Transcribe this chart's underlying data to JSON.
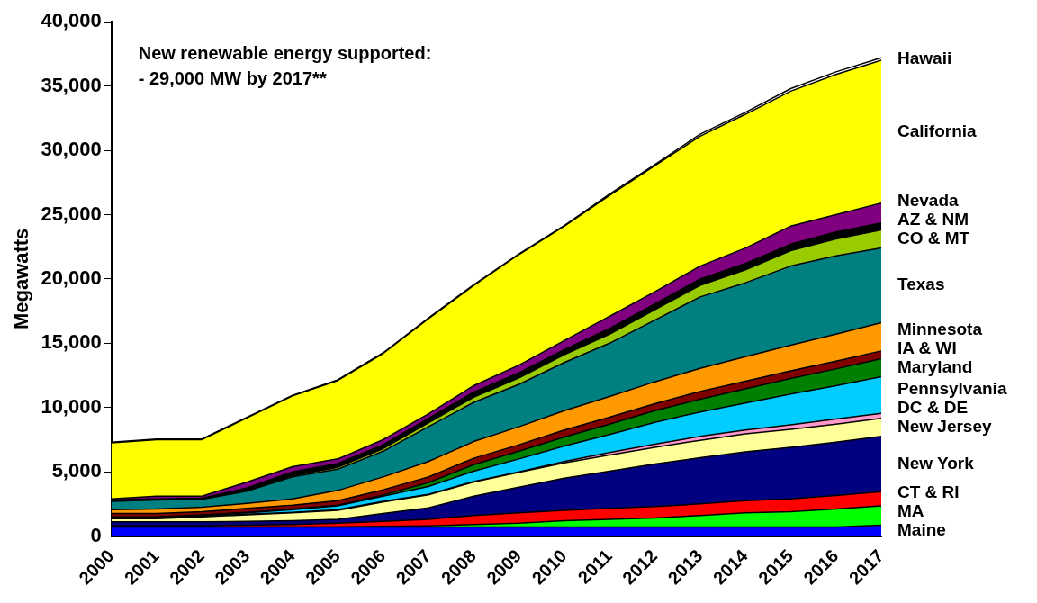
{
  "chart_data": {
    "type": "area",
    "stacked": true,
    "ylabel": "Megawatts",
    "categories": [
      "2000",
      "2001",
      "2002",
      "2003",
      "2004",
      "2005",
      "2006",
      "2007",
      "2008",
      "2009",
      "2010",
      "2011",
      "2012",
      "2013",
      "2014",
      "2015",
      "2016",
      "2017"
    ],
    "ylim": [
      0,
      40000
    ],
    "yticks": [
      {
        "value": 0,
        "label": "0"
      },
      {
        "value": 5000,
        "label": "5,000"
      },
      {
        "value": 10000,
        "label": "10,000"
      },
      {
        "value": 15000,
        "label": "15,000"
      },
      {
        "value": 20000,
        "label": "20,000"
      },
      {
        "value": 25000,
        "label": "25,000"
      },
      {
        "value": 30000,
        "label": "30,000"
      },
      {
        "value": 35000,
        "label": "35,000"
      },
      {
        "value": 40000,
        "label": "40,000"
      }
    ],
    "grid": false,
    "legend": false,
    "annotations": [
      "New renewable energy supported:\n- 29,000 MW by 2017**"
    ],
    "series": [
      {
        "name": "Maine",
        "color": "#0000ff",
        "values": [
          700,
          700,
          700,
          700,
          700,
          700,
          700,
          700,
          700,
          700,
          700,
          700,
          700,
          700,
          700,
          700,
          700,
          850
        ]
      },
      {
        "name": "MA",
        "color": "#00ff00",
        "values": [
          0,
          0,
          0,
          0,
          0,
          0,
          50,
          100,
          200,
          300,
          500,
          600,
          700,
          900,
          1100,
          1200,
          1400,
          1500
        ]
      },
      {
        "name": "CT & RI",
        "color": "#ff0000",
        "values": [
          100,
          100,
          100,
          150,
          200,
          300,
          400,
          500,
          700,
          800,
          800,
          850,
          900,
          900,
          950,
          1000,
          1050,
          1100
        ]
      },
      {
        "name": "New York",
        "color": "#000080",
        "values": [
          300,
          300,
          300,
          300,
          300,
          300,
          600,
          900,
          1500,
          2000,
          2500,
          2900,
          3300,
          3600,
          3800,
          4000,
          4150,
          4300
        ]
      },
      {
        "name": "New Jersey",
        "color": "#ffff99",
        "values": [
          250,
          250,
          400,
          500,
          600,
          700,
          900,
          1000,
          1100,
          1150,
          1200,
          1250,
          1300,
          1350,
          1400,
          1400,
          1400,
          1400
        ]
      },
      {
        "name": "DC & DE",
        "color": "#ff99cc",
        "values": [
          50,
          50,
          50,
          50,
          50,
          50,
          50,
          50,
          50,
          50,
          100,
          200,
          250,
          300,
          300,
          350,
          400,
          400
        ]
      },
      {
        "name": "Pennsylvania",
        "color": "#00ccff",
        "values": [
          50,
          50,
          50,
          100,
          200,
          300,
          400,
          600,
          800,
          1000,
          1200,
          1400,
          1700,
          1900,
          2100,
          2400,
          2600,
          2850
        ]
      },
      {
        "name": "Maryland",
        "color": "#008000",
        "values": [
          50,
          50,
          50,
          50,
          50,
          50,
          100,
          300,
          500,
          600,
          700,
          800,
          900,
          1000,
          1100,
          1200,
          1300,
          1400
        ]
      },
      {
        "name": "IA & WI",
        "color": "#800000",
        "values": [
          250,
          250,
          250,
          300,
          300,
          350,
          400,
          450,
          500,
          500,
          550,
          550,
          550,
          600,
          600,
          600,
          600,
          600
        ]
      },
      {
        "name": "Minnesota",
        "color": "#ff9900",
        "values": [
          300,
          350,
          350,
          400,
          500,
          800,
          1000,
          1200,
          1300,
          1400,
          1500,
          1600,
          1700,
          1800,
          1900,
          2000,
          2100,
          2200
        ]
      },
      {
        "name": "Texas",
        "color": "#008080",
        "values": [
          650,
          700,
          600,
          950,
          1700,
          1650,
          2000,
          2700,
          3050,
          3300,
          3750,
          4150,
          4800,
          5550,
          5750,
          6150,
          6100,
          5800
        ]
      },
      {
        "name": "CO & MT",
        "color": "#99cc00",
        "values": [
          0,
          0,
          0,
          50,
          100,
          150,
          200,
          300,
          400,
          500,
          600,
          700,
          800,
          900,
          1000,
          1200,
          1300,
          1400
        ]
      },
      {
        "name": "AZ & NM",
        "color": "#000000",
        "values": [
          100,
          100,
          100,
          200,
          300,
          300,
          300,
          350,
          400,
          400,
          400,
          450,
          450,
          500,
          500,
          500,
          550,
          550
        ]
      },
      {
        "name": "Nevada",
        "color": "#800080",
        "values": [
          100,
          200,
          150,
          450,
          400,
          350,
          400,
          350,
          500,
          600,
          700,
          950,
          950,
          1000,
          1200,
          1400,
          1350,
          1550
        ]
      },
      {
        "name": "California",
        "color": "#ffff00",
        "values": [
          4350,
          4400,
          4400,
          5000,
          5500,
          6100,
          6700,
          7400,
          7800,
          8600,
          8900,
          9400,
          9800,
          10100,
          10400,
          10500,
          10900,
          11100
        ]
      },
      {
        "name": "Hawaii",
        "color": "#ffffff",
        "values": [
          50,
          50,
          50,
          50,
          50,
          50,
          50,
          50,
          50,
          50,
          50,
          100,
          100,
          150,
          150,
          200,
          200,
          200
        ]
      }
    ]
  }
}
